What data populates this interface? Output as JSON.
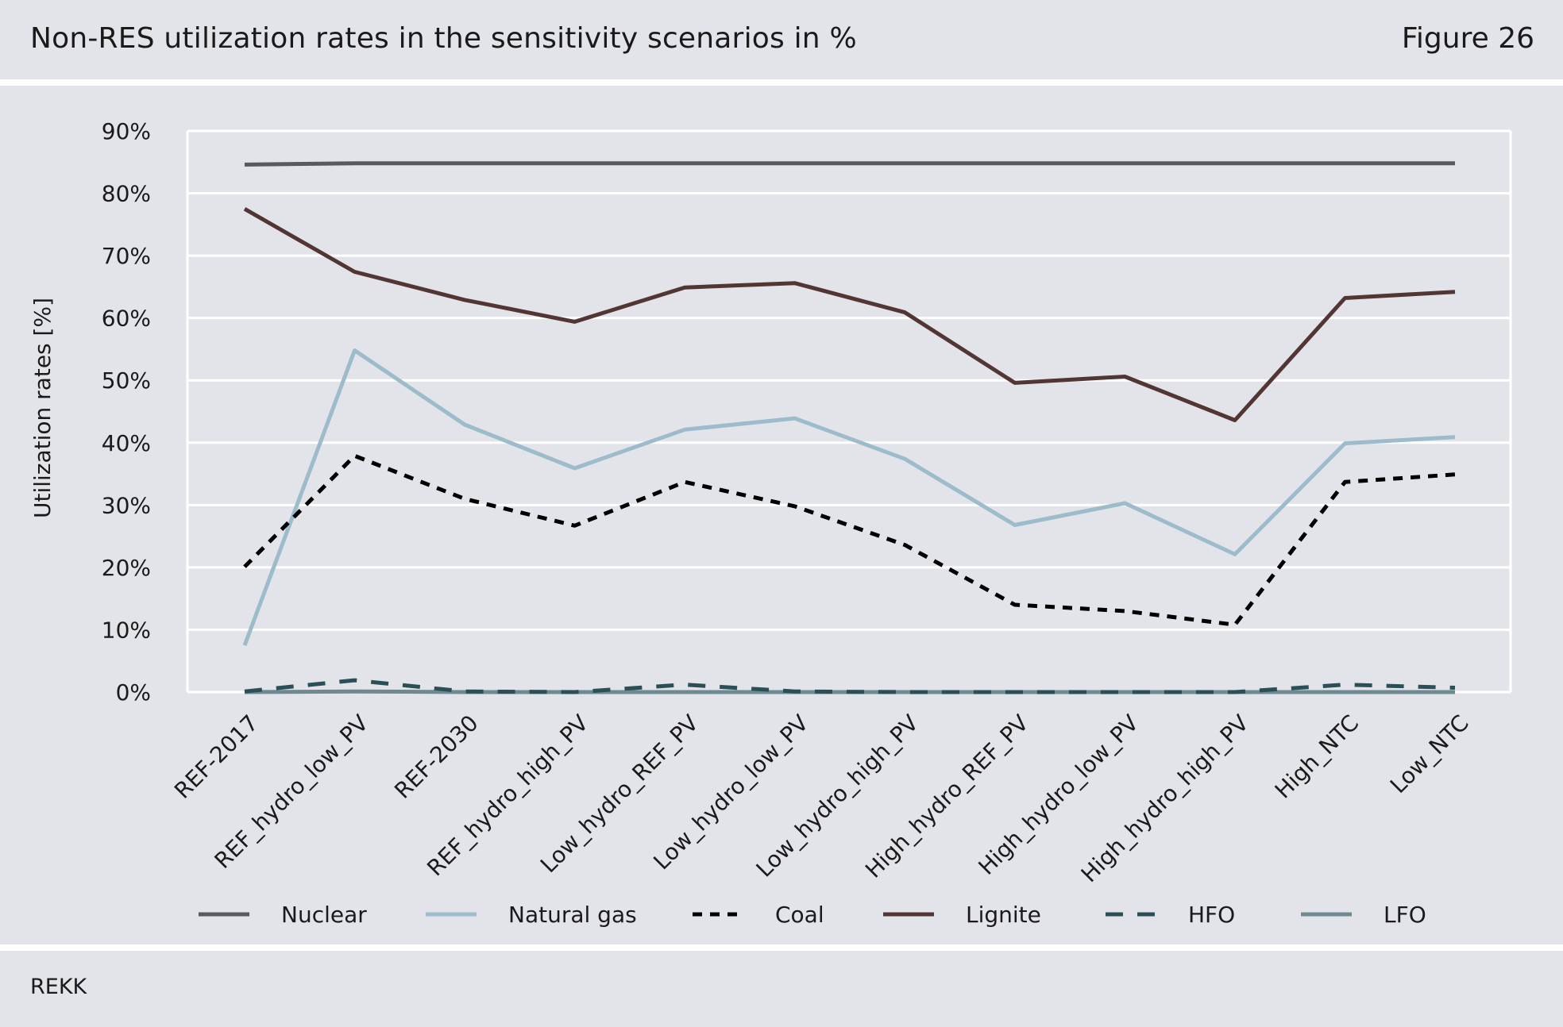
{
  "header": {
    "title": "Non-RES utilization rates in the sensitivity scenarios in %",
    "figure_number": "Figure 26"
  },
  "footer": {
    "source": "REKK"
  },
  "colors": {
    "panel_bg": "#e3e4e9",
    "grid": "#ffffff",
    "nuclear": "#5a5a5c",
    "natural_gas": "#9dbccb",
    "coal": "#000000",
    "lignite": "#523634",
    "hfo": "#2b4f57",
    "lfo": "#6e8a90"
  },
  "chart_data": {
    "type": "line",
    "title": "",
    "xlabel": "",
    "ylabel": "Utilization rates [%]",
    "ylim": [
      0,
      90
    ],
    "yticks": [
      0,
      10,
      20,
      30,
      40,
      50,
      60,
      70,
      80,
      90
    ],
    "ytick_labels": [
      "0%",
      "10%",
      "20%",
      "30%",
      "40%",
      "50%",
      "60%",
      "70%",
      "80%",
      "90%"
    ],
    "grid": true,
    "legend_position": "bottom",
    "categories": [
      "REF-2017",
      "REF_hydro_low_PV",
      "REF-2030",
      "REF_hydro_high_PV",
      "Low_hydro_REF_PV",
      "Low_hydro_low_PV",
      "Low_hydro_high_PV",
      "High_hydro_REF_PV",
      "High_hydro_low_PV",
      "High_hydro_high_PV",
      "High_NTC",
      "Low_NTC"
    ],
    "series": [
      {
        "name": "Nuclear",
        "style": "solid",
        "color": "#5a5a5c",
        "values": [
          84.6,
          84.8,
          84.8,
          84.8,
          84.8,
          84.8,
          84.8,
          84.8,
          84.8,
          84.8,
          84.8,
          84.8
        ]
      },
      {
        "name": "Natural gas",
        "style": "solid",
        "color": "#9dbccb",
        "values": [
          7.5,
          54.8,
          42.9,
          35.9,
          42.1,
          43.9,
          37.4,
          26.8,
          30.3,
          22.1,
          39.9,
          40.9
        ]
      },
      {
        "name": "Coal",
        "style": "dotted",
        "color": "#000000",
        "values": [
          20.1,
          37.9,
          31.0,
          26.7,
          33.7,
          29.8,
          23.6,
          14.0,
          13.0,
          10.8,
          33.7,
          34.9
        ]
      },
      {
        "name": "Lignite",
        "style": "solid",
        "color": "#523634",
        "values": [
          77.5,
          67.4,
          62.9,
          59.4,
          64.9,
          65.6,
          60.9,
          49.6,
          50.6,
          43.6,
          63.2,
          64.2
        ]
      },
      {
        "name": "HFO",
        "style": "dashed",
        "color": "#2b4f57",
        "values": [
          0.1,
          1.9,
          0.1,
          0.0,
          1.2,
          0.1,
          0.0,
          0.0,
          0.0,
          0.0,
          1.2,
          0.7
        ]
      },
      {
        "name": "LFO",
        "style": "solid",
        "color": "#6e8a90",
        "values": [
          0.0,
          0.1,
          0.0,
          0.0,
          0.0,
          0.0,
          0.0,
          0.0,
          0.0,
          0.0,
          0.0,
          0.0
        ]
      }
    ]
  }
}
